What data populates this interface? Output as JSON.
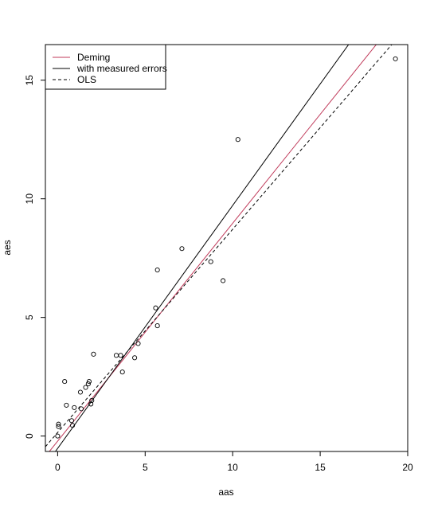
{
  "chart_data": {
    "type": "scatter",
    "title": "",
    "xlabel": "aas",
    "ylabel": "aes",
    "xlim": [
      -0.7,
      20.0
    ],
    "ylim": [
      -0.65,
      16.5
    ],
    "x_ticks": [
      0,
      5,
      10,
      15,
      20
    ],
    "y_ticks": [
      0,
      5,
      10,
      15
    ],
    "grid": false,
    "legend": {
      "position": "top-left",
      "entries": [
        {
          "label": "Deming",
          "color": "#c03a5a",
          "dash": "solid"
        },
        {
          "label": "with measured errors",
          "color": "#000000",
          "dash": "solid"
        },
        {
          "label": "OLS",
          "color": "#000000",
          "dash": "dashed"
        }
      ]
    },
    "points": [
      {
        "x": 0.0,
        "y": 0.0
      },
      {
        "x": 0.05,
        "y": 0.4
      },
      {
        "x": 0.05,
        "y": 0.5
      },
      {
        "x": 0.4,
        "y": 2.3
      },
      {
        "x": 0.5,
        "y": 1.3
      },
      {
        "x": 0.8,
        "y": 0.65
      },
      {
        "x": 0.85,
        "y": 0.45
      },
      {
        "x": 0.95,
        "y": 1.2
      },
      {
        "x": 1.3,
        "y": 1.85
      },
      {
        "x": 1.35,
        "y": 1.15
      },
      {
        "x": 1.6,
        "y": 2.05
      },
      {
        "x": 1.75,
        "y": 2.2
      },
      {
        "x": 1.8,
        "y": 2.3
      },
      {
        "x": 1.9,
        "y": 1.35
      },
      {
        "x": 1.95,
        "y": 1.5
      },
      {
        "x": 2.05,
        "y": 3.45
      },
      {
        "x": 3.35,
        "y": 3.4
      },
      {
        "x": 3.6,
        "y": 3.4
      },
      {
        "x": 3.7,
        "y": 2.7
      },
      {
        "x": 4.4,
        "y": 3.3
      },
      {
        "x": 4.6,
        "y": 3.9
      },
      {
        "x": 5.6,
        "y": 5.4
      },
      {
        "x": 5.7,
        "y": 4.65
      },
      {
        "x": 5.7,
        "y": 7.0
      },
      {
        "x": 7.1,
        "y": 7.9
      },
      {
        "x": 8.75,
        "y": 7.35
      },
      {
        "x": 9.45,
        "y": 6.55
      },
      {
        "x": 10.3,
        "y": 12.5
      },
      {
        "x": 19.3,
        "y": 15.9
      }
    ],
    "lines": [
      {
        "name": "Deming",
        "intercept": -0.215,
        "slope": 0.9183,
        "color": "#c03a5a",
        "dash": "solid"
      },
      {
        "name": "with measured errors",
        "intercept": -0.52,
        "slope": 1.024,
        "color": "#000000",
        "dash": "solid"
      },
      {
        "name": "OLS",
        "intercept": 0.15,
        "slope": 0.8565,
        "color": "#000000",
        "dash": "dashed"
      }
    ]
  }
}
